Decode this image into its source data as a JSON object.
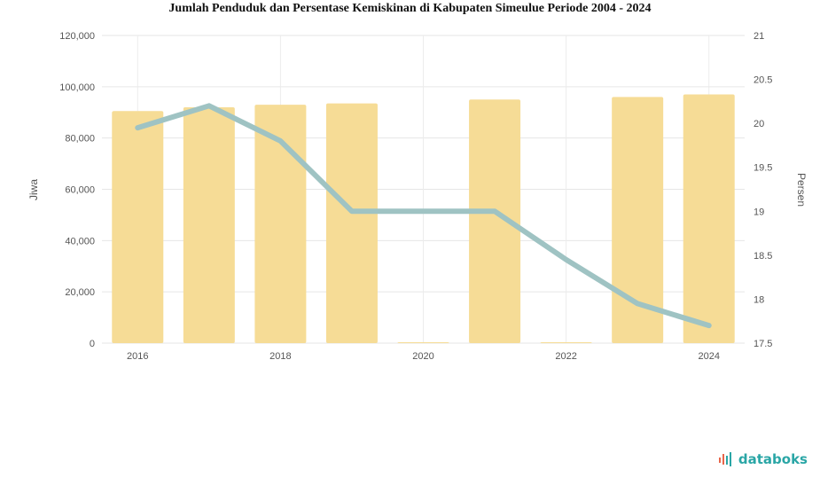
{
  "chart_data": {
    "type": "bar+line",
    "title": "Jumlah Penduduk dan Persentase Kemiskinan di Kabupaten Simeulue Periode 2004 - 2024",
    "x": [
      2016,
      2017,
      2018,
      2019,
      2020,
      2021,
      2022,
      2023,
      2024
    ],
    "x_tick_labels": [
      "2016",
      "",
      "2018",
      "",
      "2020",
      "",
      "2022",
      "",
      "2024"
    ],
    "y_left": {
      "label": "Jiwa",
      "ylim": [
        0,
        120000
      ],
      "ticks": [
        0,
        20000,
        40000,
        60000,
        80000,
        100000,
        120000
      ],
      "tick_labels": [
        "0",
        "20,000",
        "40,000",
        "60,000",
        "80,000",
        "100,000",
        "120,000"
      ]
    },
    "y_right": {
      "label": "Persen",
      "ylim": [
        17.5,
        21
      ],
      "ticks": [
        17.5,
        18,
        18.5,
        19,
        19.5,
        20,
        20.5,
        21
      ],
      "tick_labels": [
        "17.5",
        "18",
        "18.5",
        "19",
        "19.5",
        "20",
        "20.5",
        "21"
      ]
    },
    "series": [
      {
        "type": "bar",
        "axis": "left",
        "color": "#f6dc96",
        "values": [
          90500,
          92000,
          93000,
          93500,
          0,
          95000,
          0,
          96000,
          97000
        ]
      },
      {
        "type": "line",
        "axis": "right",
        "color": "#9fc3c3",
        "values": [
          19.95,
          20.2,
          19.8,
          19.0,
          19.0,
          19.0,
          18.45,
          17.95,
          17.7
        ]
      }
    ],
    "grid": true
  },
  "brand": {
    "name": "databoks",
    "accent": "#2aa6a6",
    "mark_color": "#e8664a"
  }
}
